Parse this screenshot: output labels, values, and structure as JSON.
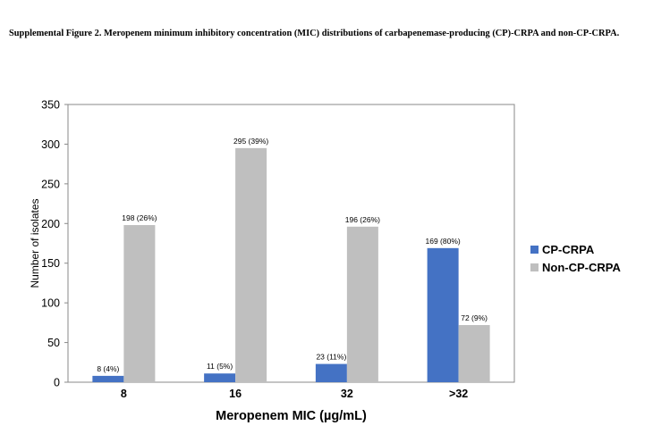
{
  "figure": {
    "caption": "Supplemental Figure 2. Meropenem minimum inhibitory concentration (MIC) distributions of carbapenemase-producing (CP)-CRPA and non-CP-CRPA."
  },
  "chart_data": {
    "type": "bar",
    "title": "",
    "xlabel": "Meropenem MIC (µg/mL)",
    "ylabel": "Number of isolates",
    "categories": [
      "8",
      "16",
      "32",
      ">32"
    ],
    "ylim": [
      0,
      350
    ],
    "yticks": [
      0,
      50,
      100,
      150,
      200,
      250,
      300,
      350
    ],
    "grid": false,
    "legend_position": "right",
    "series": [
      {
        "name": "CP-CRPA",
        "color": "#4472C4",
        "values": [
          8,
          11,
          23,
          169
        ],
        "labels": [
          "8 (4%)",
          "11 (5%)",
          "23 (11%)",
          "169 (80%)"
        ]
      },
      {
        "name": "Non-CP-CRPA",
        "color": "#BFBFBF",
        "values": [
          198,
          295,
          196,
          72
        ],
        "labels": [
          "198 (26%)",
          "295 (39%)",
          "196 (26%)",
          "72 (9%)"
        ]
      }
    ]
  }
}
